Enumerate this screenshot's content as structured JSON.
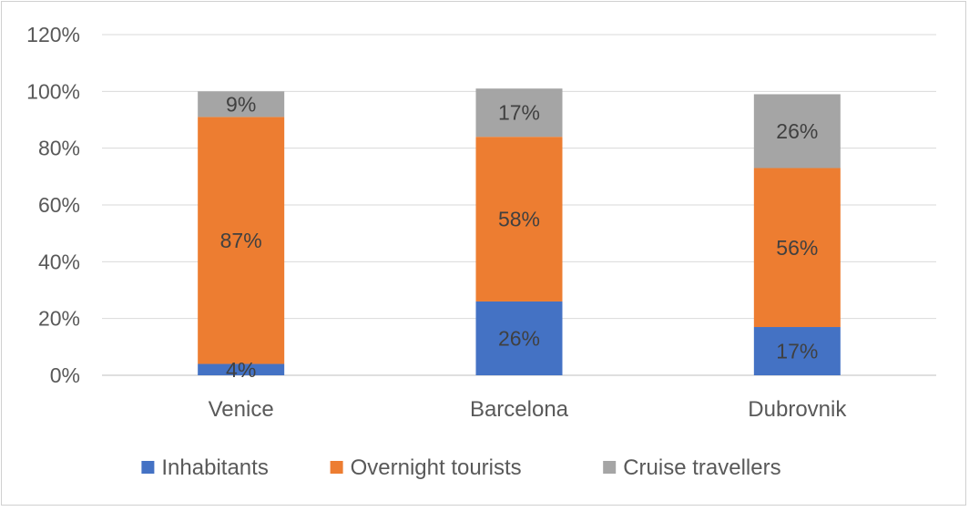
{
  "chart_data": {
    "type": "bar",
    "stacked": true,
    "categories": [
      "Venice",
      "Barcelona",
      "Dubrovnik"
    ],
    "series": [
      {
        "name": "Inhabitants",
        "values": [
          4,
          26,
          17
        ],
        "labels": [
          "4%",
          "26%",
          "17%"
        ],
        "color": "#4472C4"
      },
      {
        "name": "Overnight tourists",
        "values": [
          87,
          58,
          56
        ],
        "labels": [
          "87%",
          "58%",
          "56%"
        ],
        "color": "#ED7D31"
      },
      {
        "name": "Cruise travellers",
        "values": [
          9,
          17,
          26
        ],
        "labels": [
          "9%",
          "17%",
          "26%"
        ],
        "color": "#A5A5A5"
      }
    ],
    "ylim": [
      0,
      120
    ],
    "yticks": [
      "0%",
      "20%",
      "40%",
      "60%",
      "80%",
      "100%",
      "120%"
    ],
    "grid": true,
    "legend_position": "bottom"
  }
}
